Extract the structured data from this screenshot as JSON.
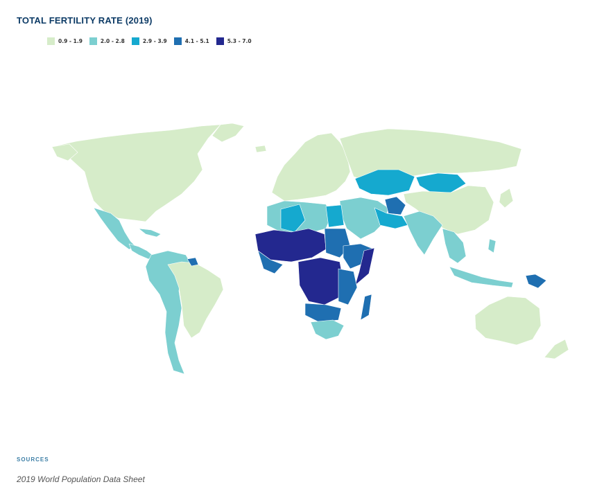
{
  "title": "TOTAL FERTILITY RATE (2019)",
  "legend": [
    {
      "label": "0.9 - 1.9",
      "color": "#d6ecc9"
    },
    {
      "label": "2.0 - 2.8",
      "color": "#7ccfd0"
    },
    {
      "label": "2.9 - 3.9",
      "color": "#15a9cf"
    },
    {
      "label": "4.1 - 5.1",
      "color": "#1f6fb1"
    },
    {
      "label": "5.3 - 7.0",
      "color": "#23288f"
    }
  ],
  "sources_label": "SOURCES",
  "source_text": "2019 World Population Data Sheet"
}
